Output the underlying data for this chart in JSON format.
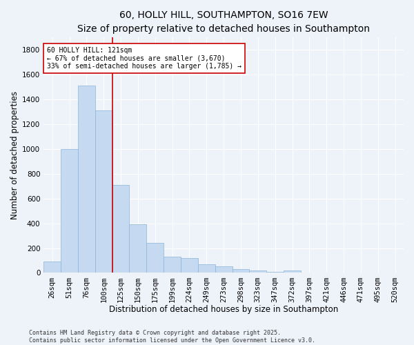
{
  "title_line1": "60, HOLLY HILL, SOUTHAMPTON, SO16 7EW",
  "title_line2": "Size of property relative to detached houses in Southampton",
  "xlabel": "Distribution of detached houses by size in Southampton",
  "ylabel": "Number of detached properties",
  "bar_color": "#c5d9f0",
  "bar_edge_color": "#8ab4d8",
  "annotation_line_color": "#cc0000",
  "annotation_box_color": "#cc0000",
  "categories": [
    "26sqm",
    "51sqm",
    "76sqm",
    "100sqm",
    "125sqm",
    "150sqm",
    "175sqm",
    "199sqm",
    "224sqm",
    "249sqm",
    "273sqm",
    "298sqm",
    "323sqm",
    "347sqm",
    "372sqm",
    "397sqm",
    "421sqm",
    "446sqm",
    "471sqm",
    "495sqm",
    "520sqm"
  ],
  "values": [
    90,
    1000,
    1510,
    1310,
    710,
    390,
    240,
    130,
    120,
    70,
    50,
    30,
    20,
    10,
    20,
    5,
    0,
    0,
    0,
    0,
    0
  ],
  "ylim": [
    0,
    1900
  ],
  "yticks": [
    0,
    200,
    400,
    600,
    800,
    1000,
    1200,
    1400,
    1600,
    1800
  ],
  "red_line_x": 3.5,
  "annotation_text": "60 HOLLY HILL: 121sqm\n← 67% of detached houses are smaller (3,670)\n33% of semi-detached houses are larger (1,785) →",
  "footer_text": "Contains HM Land Registry data © Crown copyright and database right 2025.\nContains public sector information licensed under the Open Government Licence v3.0.",
  "background_color": "#eef2f9",
  "grid_color": "#ffffff",
  "title_fontsize": 10,
  "subtitle_fontsize": 9,
  "axis_label_fontsize": 8.5,
  "tick_fontsize": 7.5,
  "annotation_fontsize": 7,
  "footer_fontsize": 6
}
